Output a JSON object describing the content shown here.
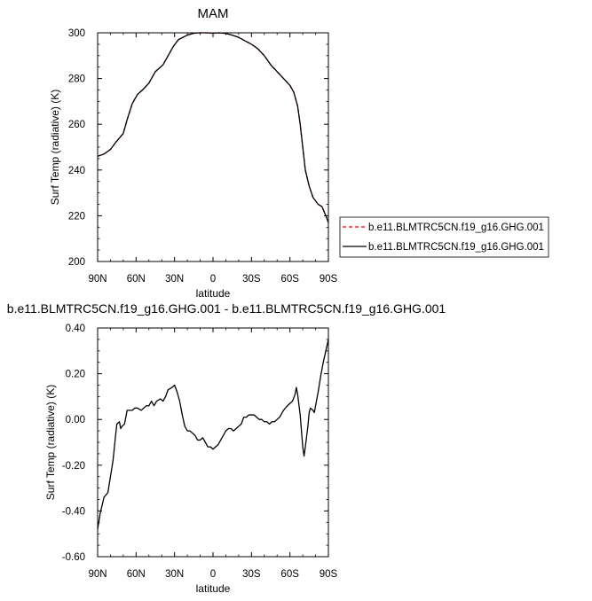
{
  "chart_data": [
    {
      "type": "line",
      "title": "MAM",
      "xlabel": "latitude",
      "ylabel": "Surf Temp (radiative) (K)",
      "x_ticks": [
        "90N",
        "60N",
        "30N",
        "0",
        "30S",
        "60S",
        "90S"
      ],
      "x_tick_values": [
        90,
        60,
        30,
        0,
        -30,
        -60,
        -90
      ],
      "xlim": [
        90,
        -90
      ],
      "y_ticks": [
        "200",
        "220",
        "240",
        "260",
        "280",
        "300"
      ],
      "ylim": [
        200,
        300
      ],
      "legend_position": "right",
      "series": [
        {
          "name": "b.e11.BLMTRC5CN.f19_g16.GHG.001",
          "color": "#ff0000",
          "dash": "dashed",
          "points": [
            [
              90,
              246
            ],
            [
              85,
              247
            ],
            [
              80,
              249
            ],
            [
              76,
              252
            ],
            [
              70,
              256
            ],
            [
              67,
              262
            ],
            [
              63,
              269
            ],
            [
              59,
              273
            ],
            [
              55,
              275
            ],
            [
              50,
              278
            ],
            [
              45,
              283
            ],
            [
              39,
              286
            ],
            [
              35,
              290
            ],
            [
              31,
              294
            ],
            [
              27,
              297
            ],
            [
              20,
              299
            ],
            [
              15,
              299.8
            ],
            [
              10,
              300
            ],
            [
              5,
              300
            ],
            [
              0,
              299.8
            ],
            [
              -5,
              300
            ],
            [
              -10,
              299.7
            ],
            [
              -15,
              299
            ],
            [
              -20,
              298
            ],
            [
              -25,
              296.5
            ],
            [
              -30,
              295
            ],
            [
              -35,
              293
            ],
            [
              -40,
              290
            ],
            [
              -45,
              286
            ],
            [
              -50,
              283
            ],
            [
              -55,
              280
            ],
            [
              -60,
              277
            ],
            [
              -63,
              274
            ],
            [
              -66,
              268
            ],
            [
              -68,
              260
            ],
            [
              -70,
              250
            ],
            [
              -72,
              240
            ],
            [
              -75,
              233
            ],
            [
              -78,
              228
            ],
            [
              -82,
              225
            ],
            [
              -85,
              224
            ],
            [
              -88,
              220
            ],
            [
              -90,
              217
            ]
          ]
        },
        {
          "name": "b.e11.BLMTRC5CN.f19_g16.GHG.001",
          "color": "#000000",
          "dash": "solid",
          "points": [
            [
              90,
              246
            ],
            [
              85,
              247
            ],
            [
              80,
              249
            ],
            [
              76,
              252
            ],
            [
              70,
              256
            ],
            [
              67,
              262
            ],
            [
              63,
              269
            ],
            [
              59,
              273
            ],
            [
              55,
              275
            ],
            [
              50,
              278
            ],
            [
              45,
              283
            ],
            [
              39,
              286
            ],
            [
              35,
              290
            ],
            [
              31,
              294
            ],
            [
              27,
              297
            ],
            [
              20,
              299
            ],
            [
              15,
              299.8
            ],
            [
              10,
              300
            ],
            [
              5,
              300
            ],
            [
              0,
              299.8
            ],
            [
              -5,
              300
            ],
            [
              -10,
              299.7
            ],
            [
              -15,
              299
            ],
            [
              -20,
              298
            ],
            [
              -25,
              296.5
            ],
            [
              -30,
              295
            ],
            [
              -35,
              293
            ],
            [
              -40,
              290
            ],
            [
              -45,
              286
            ],
            [
              -50,
              283
            ],
            [
              -55,
              280
            ],
            [
              -60,
              277
            ],
            [
              -63,
              274
            ],
            [
              -66,
              268
            ],
            [
              -68,
              260
            ],
            [
              -70,
              250
            ],
            [
              -72,
              240
            ],
            [
              -75,
              233
            ],
            [
              -78,
              228
            ],
            [
              -82,
              225
            ],
            [
              -85,
              224
            ],
            [
              -88,
              220
            ],
            [
              -90,
              217
            ]
          ]
        }
      ]
    },
    {
      "type": "line",
      "title": "b.e11.BLMTRC5CN.f19_g16.GHG.001 - b.e11.BLMTRC5CN.f19_g16.GHG.001",
      "xlabel": "latitude",
      "ylabel": "Surf Temp (radiative) (K)",
      "x_ticks": [
        "90N",
        "60N",
        "30N",
        "0",
        "30S",
        "60S",
        "90S"
      ],
      "x_tick_values": [
        90,
        60,
        30,
        0,
        -30,
        -60,
        -90
      ],
      "xlim": [
        90,
        -90
      ],
      "y_ticks": [
        "-0.60",
        "-0.40",
        "-0.20",
        "0.00",
        "0.20",
        "0.40"
      ],
      "y_tick_values": [
        -0.6,
        -0.4,
        -0.2,
        0,
        0.2,
        0.4
      ],
      "ylim": [
        -0.6,
        0.4
      ],
      "series": [
        {
          "color": "#000000",
          "dash": "solid",
          "points": [
            [
              90,
              -0.48
            ],
            [
              88,
              -0.41
            ],
            [
              85,
              -0.34
            ],
            [
              82,
              -0.32
            ],
            [
              80,
              -0.25
            ],
            [
              78,
              -0.18
            ],
            [
              76,
              -0.07
            ],
            [
              75,
              -0.02
            ],
            [
              73,
              -0.01
            ],
            [
              72,
              -0.04
            ],
            [
              71,
              -0.03
            ],
            [
              69,
              -0.02
            ],
            [
              67,
              0.04
            ],
            [
              65,
              0.04
            ],
            [
              63,
              0.04
            ],
            [
              61,
              0.05
            ],
            [
              59,
              0.05
            ],
            [
              56,
              0.04
            ],
            [
              54,
              0.05
            ],
            [
              52,
              0.06
            ],
            [
              50,
              0.06
            ],
            [
              48,
              0.08
            ],
            [
              46,
              0.06
            ],
            [
              44,
              0.08
            ],
            [
              41,
              0.09
            ],
            [
              39,
              0.08
            ],
            [
              37,
              0.1
            ],
            [
              35,
              0.13
            ],
            [
              32,
              0.14
            ],
            [
              30,
              0.15
            ],
            [
              28,
              0.12
            ],
            [
              26,
              0.08
            ],
            [
              24,
              0.02
            ],
            [
              22,
              -0.03
            ],
            [
              20,
              -0.05
            ],
            [
              18,
              -0.05
            ],
            [
              16,
              -0.06
            ],
            [
              14,
              -0.07
            ],
            [
              12,
              -0.09
            ],
            [
              10,
              -0.09
            ],
            [
              8,
              -0.08
            ],
            [
              6,
              -0.1
            ],
            [
              4,
              -0.12
            ],
            [
              2,
              -0.12
            ],
            [
              0,
              -0.13
            ],
            [
              -2,
              -0.12
            ],
            [
              -4,
              -0.11
            ],
            [
              -6,
              -0.09
            ],
            [
              -8,
              -0.07
            ],
            [
              -10,
              -0.05
            ],
            [
              -12,
              -0.04
            ],
            [
              -14,
              -0.04
            ],
            [
              -16,
              -0.05
            ],
            [
              -18,
              -0.04
            ],
            [
              -20,
              -0.03
            ],
            [
              -22,
              -0.02
            ],
            [
              -24,
              0.01
            ],
            [
              -26,
              0.01
            ],
            [
              -28,
              0.02
            ],
            [
              -30,
              0.02
            ],
            [
              -32,
              0.02
            ],
            [
              -34,
              0.01
            ],
            [
              -36,
              0.0
            ],
            [
              -38,
              0.0
            ],
            [
              -40,
              -0.01
            ],
            [
              -42,
              -0.01
            ],
            [
              -44,
              -0.02
            ],
            [
              -46,
              -0.01
            ],
            [
              -48,
              -0.01
            ],
            [
              -50,
              0.0
            ],
            [
              -52,
              0.01
            ],
            [
              -55,
              0.04
            ],
            [
              -58,
              0.06
            ],
            [
              -60,
              0.07
            ],
            [
              -62,
              0.08
            ],
            [
              -64,
              0.11
            ],
            [
              -65,
              0.14
            ],
            [
              -66,
              0.11
            ],
            [
              -68,
              0.02
            ],
            [
              -70,
              -0.12
            ],
            [
              -71,
              -0.16
            ],
            [
              -72,
              -0.12
            ],
            [
              -74,
              -0.03
            ],
            [
              -75,
              0.03
            ],
            [
              -76,
              0.05
            ],
            [
              -78,
              0.04
            ],
            [
              -79,
              0.03
            ],
            [
              -80,
              0.06
            ],
            [
              -82,
              0.12
            ],
            [
              -84,
              0.19
            ],
            [
              -86,
              0.25
            ],
            [
              -88,
              0.3
            ],
            [
              -90,
              0.35
            ]
          ]
        }
      ]
    }
  ]
}
